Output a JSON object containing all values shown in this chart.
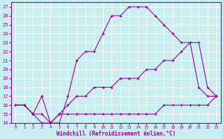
{
  "xlabel": "Windchill (Refroidissement éolien,°C)",
  "background_color": "#c8eef0",
  "grid_color": "#ffffff",
  "line_color": "#990099",
  "xlim": [
    -0.5,
    23.5
  ],
  "ylim": [
    14,
    27.5
  ],
  "xticks": [
    0,
    1,
    2,
    3,
    4,
    5,
    6,
    7,
    8,
    9,
    10,
    11,
    12,
    13,
    14,
    15,
    16,
    17,
    18,
    19,
    20,
    21,
    22,
    23
  ],
  "yticks": [
    14,
    15,
    16,
    17,
    18,
    19,
    20,
    21,
    22,
    23,
    24,
    25,
    26,
    27
  ],
  "series": [
    {
      "x": [
        0,
        1,
        2,
        3,
        4,
        5,
        6,
        7,
        8,
        9,
        10,
        11,
        12,
        13,
        14,
        15,
        16,
        17,
        18,
        19,
        20,
        21,
        22,
        23
      ],
      "y": [
        16,
        16,
        15,
        14,
        14,
        15,
        15,
        15,
        15,
        15,
        15,
        15,
        15,
        15,
        15,
        15,
        15,
        16,
        16,
        16,
        16,
        16,
        16,
        17
      ]
    },
    {
      "x": [
        0,
        1,
        2,
        3,
        4,
        5,
        6,
        7,
        8,
        9,
        10,
        11,
        12,
        13,
        14,
        15,
        16,
        17,
        18,
        19,
        20,
        21,
        22,
        23
      ],
      "y": [
        16,
        16,
        15,
        15,
        14,
        15,
        16,
        17,
        17,
        18,
        18,
        18,
        19,
        19,
        19,
        20,
        20,
        21,
        21,
        22,
        23,
        23,
        18,
        17
      ]
    },
    {
      "x": [
        0,
        1,
        2,
        3,
        4,
        5,
        6,
        7,
        8,
        9,
        10,
        11,
        12,
        13,
        14,
        15,
        16,
        17,
        18,
        19,
        20,
        21,
        22,
        23
      ],
      "y": [
        16,
        16,
        15,
        17,
        14,
        14,
        17,
        21,
        22,
        22,
        24,
        26,
        26,
        27,
        27,
        27,
        26,
        25,
        24,
        23,
        23,
        18,
        17,
        17
      ]
    }
  ]
}
